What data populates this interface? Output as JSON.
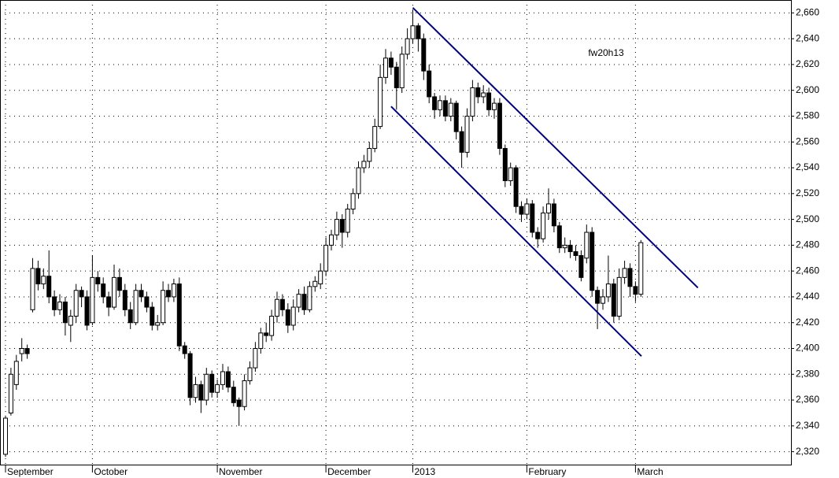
{
  "chart_data": {
    "type": "candlestick",
    "annotation": "fw20h13",
    "categories": [
      "September",
      null,
      null,
      null,
      null,
      null,
      null,
      null,
      null,
      null,
      null,
      null,
      null,
      null,
      null,
      null,
      "October",
      null,
      null,
      null,
      null,
      null,
      null,
      null,
      null,
      null,
      null,
      null,
      null,
      null,
      null,
      null,
      null,
      null,
      null,
      null,
      null,
      null,
      null,
      "November",
      null,
      null,
      null,
      null,
      null,
      null,
      null,
      null,
      null,
      null,
      null,
      null,
      null,
      null,
      null,
      null,
      null,
      null,
      null,
      "December",
      null,
      null,
      null,
      null,
      null,
      null,
      null,
      null,
      null,
      null,
      null,
      null,
      null,
      null,
      null,
      "2013",
      null,
      null,
      null,
      null,
      null,
      null,
      null,
      null,
      null,
      null,
      null,
      null,
      null,
      null,
      null,
      null,
      null,
      null,
      null,
      null,
      "February",
      null,
      null,
      null,
      null,
      null,
      null,
      null,
      null,
      null,
      null,
      null,
      null,
      null,
      null,
      null,
      null,
      null,
      null,
      null,
      "March",
      null
    ],
    "ohlc": [
      [
        2318,
        2348,
        2316,
        2346
      ],
      [
        2350,
        2385,
        2348,
        2380
      ],
      [
        2372,
        2395,
        2368,
        2390
      ],
      [
        2396,
        2408,
        2390,
        2400
      ],
      [
        2400,
        2403,
        2392,
        2396
      ],
      [
        2430,
        2470,
        2428,
        2462
      ],
      [
        2462,
        2468,
        2445,
        2450
      ],
      [
        2450,
        2462,
        2446,
        2456
      ],
      [
        2456,
        2476,
        2435,
        2440
      ],
      [
        2440,
        2445,
        2425,
        2430
      ],
      [
        2430,
        2442,
        2426,
        2436
      ],
      [
        2436,
        2440,
        2410,
        2420
      ],
      [
        2418,
        2430,
        2405,
        2425
      ],
      [
        2425,
        2450,
        2420,
        2445
      ],
      [
        2445,
        2448,
        2432,
        2440
      ],
      [
        2440,
        2445,
        2414,
        2418
      ],
      [
        2420,
        2472,
        2418,
        2455
      ],
      [
        2455,
        2460,
        2444,
        2450
      ],
      [
        2450,
        2455,
        2435,
        2440
      ],
      [
        2440,
        2444,
        2425,
        2432
      ],
      [
        2432,
        2465,
        2430,
        2455
      ],
      [
        2455,
        2462,
        2440,
        2445
      ],
      [
        2445,
        2450,
        2425,
        2430
      ],
      [
        2430,
        2436,
        2415,
        2420
      ],
      [
        2420,
        2450,
        2418,
        2445
      ],
      [
        2445,
        2450,
        2436,
        2440
      ],
      [
        2440,
        2444,
        2428,
        2432
      ],
      [
        2432,
        2436,
        2414,
        2418
      ],
      [
        2418,
        2426,
        2414,
        2420
      ],
      [
        2420,
        2452,
        2418,
        2445
      ],
      [
        2445,
        2450,
        2436,
        2440
      ],
      [
        2440,
        2454,
        2436,
        2450
      ],
      [
        2450,
        2455,
        2398,
        2402
      ],
      [
        2402,
        2405,
        2392,
        2396
      ],
      [
        2396,
        2398,
        2356,
        2362
      ],
      [
        2362,
        2378,
        2358,
        2372
      ],
      [
        2372,
        2375,
        2350,
        2360
      ],
      [
        2360,
        2385,
        2356,
        2380
      ],
      [
        2380,
        2383,
        2362,
        2366
      ],
      [
        2366,
        2376,
        2362,
        2372
      ],
      [
        2372,
        2388,
        2368,
        2382
      ],
      [
        2382,
        2386,
        2366,
        2370
      ],
      [
        2370,
        2375,
        2355,
        2358
      ],
      [
        2360,
        2362,
        2340,
        2355
      ],
      [
        2355,
        2380,
        2352,
        2375
      ],
      [
        2375,
        2390,
        2372,
        2385
      ],
      [
        2385,
        2405,
        2382,
        2400
      ],
      [
        2400,
        2416,
        2396,
        2412
      ],
      [
        2412,
        2420,
        2405,
        2410
      ],
      [
        2410,
        2430,
        2406,
        2425
      ],
      [
        2425,
        2444,
        2420,
        2438
      ],
      [
        2438,
        2442,
        2425,
        2430
      ],
      [
        2430,
        2435,
        2412,
        2418
      ],
      [
        2418,
        2438,
        2414,
        2432
      ],
      [
        2432,
        2446,
        2428,
        2442
      ],
      [
        2442,
        2448,
        2426,
        2430
      ],
      [
        2430,
        2452,
        2428,
        2448
      ],
      [
        2448,
        2456,
        2444,
        2452
      ],
      [
        2450,
        2466,
        2446,
        2460
      ],
      [
        2460,
        2486,
        2456,
        2480
      ],
      [
        2480,
        2492,
        2476,
        2488
      ],
      [
        2488,
        2506,
        2484,
        2500
      ],
      [
        2500,
        2504,
        2478,
        2490
      ],
      [
        2490,
        2512,
        2486,
        2508
      ],
      [
        2508,
        2524,
        2504,
        2520
      ],
      [
        2520,
        2545,
        2516,
        2540
      ],
      [
        2540,
        2550,
        2536,
        2545
      ],
      [
        2545,
        2560,
        2540,
        2555
      ],
      [
        2555,
        2578,
        2552,
        2572
      ],
      [
        2572,
        2620,
        2570,
        2610
      ],
      [
        2610,
        2632,
        2605,
        2625
      ],
      [
        2625,
        2630,
        2612,
        2618
      ],
      [
        2618,
        2622,
        2585,
        2602
      ],
      [
        2602,
        2634,
        2598,
        2628
      ],
      [
        2628,
        2648,
        2624,
        2640
      ],
      [
        2640,
        2662,
        2636,
        2650
      ],
      [
        2650,
        2652,
        2630,
        2640
      ],
      [
        2640,
        2644,
        2608,
        2615
      ],
      [
        2615,
        2620,
        2590,
        2595
      ],
      [
        2595,
        2598,
        2578,
        2585
      ],
      [
        2585,
        2596,
        2580,
        2592
      ],
      [
        2592,
        2596,
        2576,
        2580
      ],
      [
        2580,
        2594,
        2576,
        2590
      ],
      [
        2590,
        2592,
        2562,
        2568
      ],
      [
        2568,
        2572,
        2540,
        2552
      ],
      [
        2552,
        2586,
        2548,
        2580
      ],
      [
        2580,
        2608,
        2576,
        2602
      ],
      [
        2602,
        2606,
        2590,
        2595
      ],
      [
        2595,
        2604,
        2590,
        2598
      ],
      [
        2598,
        2602,
        2580,
        2585
      ],
      [
        2585,
        2594,
        2578,
        2590
      ],
      [
        2590,
        2594,
        2550,
        2555
      ],
      [
        2555,
        2558,
        2525,
        2530
      ],
      [
        2530,
        2544,
        2526,
        2540
      ],
      [
        2540,
        2542,
        2505,
        2510
      ],
      [
        2510,
        2514,
        2498,
        2504
      ],
      [
        2504,
        2516,
        2500,
        2512
      ],
      [
        2512,
        2515,
        2486,
        2490
      ],
      [
        2490,
        2494,
        2478,
        2485
      ],
      [
        2485,
        2510,
        2482,
        2505
      ],
      [
        2505,
        2524,
        2500,
        2512
      ],
      [
        2512,
        2516,
        2490,
        2495
      ],
      [
        2495,
        2498,
        2474,
        2478
      ],
      [
        2478,
        2486,
        2474,
        2480
      ],
      [
        2480,
        2484,
        2470,
        2475
      ],
      [
        2475,
        2480,
        2468,
        2472
      ],
      [
        2472,
        2476,
        2452,
        2455
      ],
      [
        2470,
        2496,
        2466,
        2490
      ],
      [
        2490,
        2494,
        2440,
        2445
      ],
      [
        2445,
        2448,
        2415,
        2435
      ],
      [
        2435,
        2446,
        2430,
        2440
      ],
      [
        2440,
        2472,
        2436,
        2450
      ],
      [
        2450,
        2454,
        2420,
        2425
      ],
      [
        2425,
        2462,
        2422,
        2455
      ],
      [
        2455,
        2468,
        2450,
        2462
      ],
      [
        2462,
        2466,
        2440,
        2448
      ],
      [
        2448,
        2452,
        2436,
        2442
      ],
      [
        2442,
        2484,
        2440,
        2482
      ]
    ],
    "up_fill": "#ffffff",
    "down_fill": "#000000",
    "trendlines": [
      {
        "x": [
          75,
          127.5
        ],
        "y": [
          2664,
          2447
        ],
        "color": "#000080"
      },
      {
        "x": [
          71,
          117.1
        ],
        "y": [
          2587.5,
          2394
        ],
        "color": "#000080"
      }
    ],
    "ylim": [
      2310,
      2670
    ],
    "yticks": [
      {
        "value": 2320,
        "label": "2,320"
      },
      {
        "value": 2340,
        "label": "2,340"
      },
      {
        "value": 2360,
        "label": "2,360"
      },
      {
        "value": 2380,
        "label": "2,380"
      },
      {
        "value": 2400,
        "label": "2,400"
      },
      {
        "value": 2420,
        "label": "2,420"
      },
      {
        "value": 2440,
        "label": "2,440"
      },
      {
        "value": 2460,
        "label": "2,460"
      },
      {
        "value": 2480,
        "label": "2,480"
      },
      {
        "value": 2500,
        "label": "2,500"
      },
      {
        "value": 2520,
        "label": "2,520"
      },
      {
        "value": 2540,
        "label": "2,540"
      },
      {
        "value": 2560,
        "label": "2,560"
      },
      {
        "value": 2580,
        "label": "2,580"
      },
      {
        "value": 2600,
        "label": "2,600"
      },
      {
        "value": 2620,
        "label": "2,620"
      },
      {
        "value": 2640,
        "label": "2,640"
      },
      {
        "value": 2660,
        "label": "2,660"
      }
    ],
    "grid": true
  }
}
